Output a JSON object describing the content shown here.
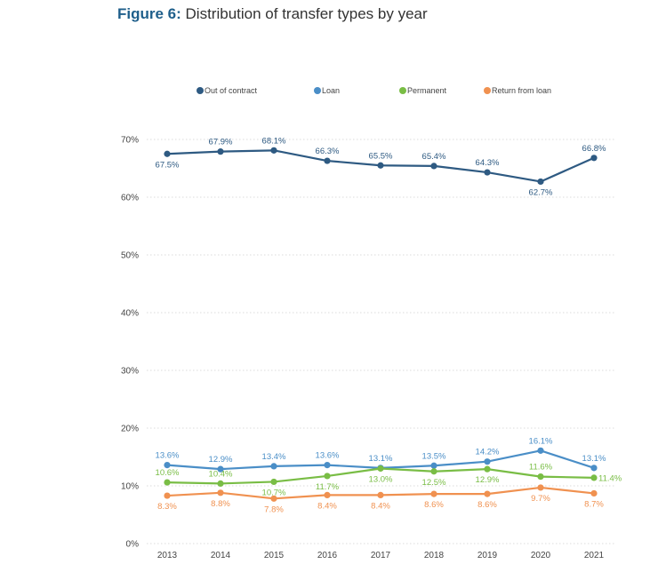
{
  "figure": {
    "prefix": "Figure 6:",
    "title": "Distribution of transfer types by year"
  },
  "chart_data": {
    "type": "line",
    "title": "Distribution of transfer types by year",
    "categories": [
      "2013",
      "2014",
      "2015",
      "2016",
      "2017",
      "2018",
      "2019",
      "2020",
      "2021"
    ],
    "y_ticks": [
      "0%",
      "10%",
      "20%",
      "30%",
      "40%",
      "50%",
      "60%",
      "70%"
    ],
    "ylim": [
      0,
      70
    ],
    "grid": true,
    "legend_position": "top",
    "series": [
      {
        "name": "Out of contract",
        "color": "#2e5a82",
        "values": [
          67.5,
          67.9,
          68.1,
          66.3,
          65.5,
          65.4,
          64.3,
          62.7,
          66.8
        ],
        "labels": [
          "67.5%",
          "67.9%",
          "68.1%",
          "66.3%",
          "65.5%",
          "65.4%",
          "64.3%",
          "62.7%",
          "66.8%"
        ],
        "label_pos": [
          "below",
          "above",
          "above",
          "above",
          "above",
          "above",
          "above",
          "below",
          "above"
        ]
      },
      {
        "name": "Loan",
        "color": "#4a8ec7",
        "values": [
          13.6,
          12.9,
          13.4,
          13.6,
          13.1,
          13.5,
          14.2,
          16.1,
          13.1
        ],
        "labels": [
          "13.6%",
          "12.9%",
          "13.4%",
          "13.6%",
          "13.1%",
          "13.5%",
          "14.2%",
          "16.1%",
          "13.1%"
        ],
        "label_pos": [
          "above",
          "above",
          "above",
          "above",
          "above",
          "above",
          "above",
          "above",
          "above"
        ]
      },
      {
        "name": "Permanent",
        "color": "#79bd45",
        "values": [
          10.6,
          10.4,
          10.7,
          11.7,
          13.0,
          12.5,
          12.9,
          11.6,
          11.4
        ],
        "labels": [
          "10.6%",
          "10.4%",
          "10.7%",
          "11.7%",
          "13.0%",
          "12.5%",
          "12.9%",
          "11.6%",
          "11.4%"
        ],
        "label_pos": [
          "above",
          "above",
          "below",
          "below",
          "below",
          "below",
          "below",
          "above",
          "right"
        ]
      },
      {
        "name": "Return from loan",
        "color": "#f09150",
        "values": [
          8.3,
          8.8,
          7.8,
          8.4,
          8.4,
          8.6,
          8.6,
          9.7,
          8.7
        ],
        "labels": [
          "8.3%",
          "8.8%",
          "7.8%",
          "8.4%",
          "8.4%",
          "8.6%",
          "8.6%",
          "9.7%",
          "8.7%"
        ],
        "label_pos": [
          "below",
          "below",
          "below",
          "below",
          "below",
          "below",
          "below",
          "below",
          "below"
        ]
      }
    ]
  }
}
